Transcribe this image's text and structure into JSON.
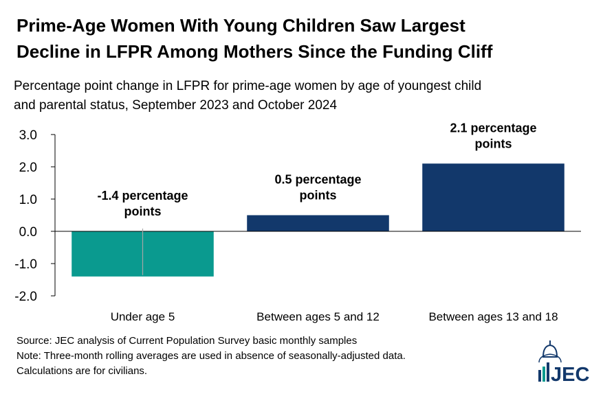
{
  "header": {
    "title_line1": "Prime-Age Women With Young Children Saw Largest",
    "title_line2": "Decline in LFPR Among Mothers Since the Funding Cliff",
    "subtitle_line1": "Percentage point change in LFPR for prime-age women by age of youngest child",
    "subtitle_line2": "and parental status, September 2023 and October 2024"
  },
  "chart_data": {
    "type": "bar",
    "title": "Prime-Age Women With Young Children Saw Largest Decline in LFPR Among Mothers Since the Funding Cliff",
    "subtitle": "Percentage point change in LFPR for prime-age women by age of youngest child and parental status, September 2023 and October 2024",
    "categories": [
      "Under age 5",
      "Between ages 5 and 12",
      "Between ages 13 and 18"
    ],
    "values": [
      -1.4,
      0.5,
      2.1
    ],
    "data_labels": [
      [
        "-1.4 percentage",
        "points"
      ],
      [
        "0.5 percentage",
        "points"
      ],
      [
        "2.1 percentage",
        "points"
      ]
    ],
    "colors": [
      "#0a9a8f",
      "#12386b",
      "#12386b"
    ],
    "ylim": [
      -2.0,
      3.0
    ],
    "yticks": [
      3.0,
      2.0,
      1.0,
      0.0,
      -1.0,
      -2.0
    ],
    "ytick_labels": [
      "3.0",
      "2.0",
      "1.0",
      "0.0",
      "-1.0",
      "-2.0"
    ],
    "xlabel": "",
    "ylabel": "",
    "grid": false,
    "legend": "none"
  },
  "footer": {
    "source": "Source: JEC analysis of Current Population Survey basic monthly samples",
    "note_line1": "Note: Three-month rolling averages are used in absence of seasonally-adjusted data.",
    "note_line2": "Calculations are for civilians."
  },
  "logo": {
    "text": "JEC",
    "color": "#12386b",
    "accent": "#0a9a8f"
  }
}
